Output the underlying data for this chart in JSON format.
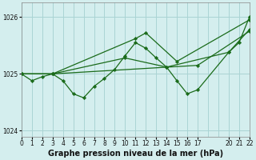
{
  "title": "Graphe pression niveau de la mer (hPa)",
  "bg_color": "#d4eeee",
  "grid_color": "#aad4d4",
  "line_color": "#1a6b1a",
  "series": [
    {
      "x": [
        0,
        1,
        2,
        3,
        4,
        5,
        6,
        7,
        8,
        9,
        10,
        11,
        12,
        13,
        14,
        15,
        16,
        17,
        20,
        21,
        22
      ],
      "y": [
        1025.0,
        1024.88,
        1024.95,
        1025.0,
        1024.88,
        1024.65,
        1024.58,
        1024.78,
        1024.92,
        1025.08,
        1025.32,
        1025.55,
        1025.45,
        1025.28,
        1025.12,
        1024.88,
        1024.65,
        1024.72,
        1025.38,
        1025.55,
        1026.0
      ]
    },
    {
      "x": [
        0,
        3,
        11,
        12,
        15,
        22
      ],
      "y": [
        1025.0,
        1025.0,
        1025.62,
        1025.72,
        1025.22,
        1025.95
      ]
    },
    {
      "x": [
        0,
        3,
        10,
        14,
        20,
        22
      ],
      "y": [
        1025.0,
        1025.0,
        1025.28,
        1025.12,
        1025.38,
        1025.78
      ]
    },
    {
      "x": [
        0,
        3,
        17,
        22
      ],
      "y": [
        1025.0,
        1025.0,
        1025.15,
        1025.75
      ]
    }
  ],
  "xlim": [
    0,
    22
  ],
  "ylim": [
    1023.9,
    1026.25
  ],
  "yticks": [
    1024,
    1025,
    1026
  ],
  "xtick_positions": [
    0,
    1,
    2,
    3,
    4,
    5,
    6,
    7,
    8,
    9,
    10,
    11,
    12,
    13,
    14,
    15,
    16,
    17,
    20,
    21,
    22
  ],
  "xtick_labels": [
    "0",
    "1",
    "2",
    "3",
    "4",
    "5",
    "6",
    "7",
    "8",
    "9",
    "10",
    "11",
    "12",
    "13",
    "14",
    "15",
    "16",
    "17",
    "20",
    "21",
    "22"
  ],
  "grid_x": [
    0,
    1,
    2,
    3,
    4,
    5,
    6,
    7,
    8,
    9,
    10,
    11,
    12,
    13,
    14,
    15,
    16,
    17,
    18,
    19,
    20,
    21,
    22
  ],
  "tick_fontsize": 5.5,
  "label_fontsize": 7.0,
  "marker": "D",
  "markersize": 2.2,
  "linewidth": 0.9
}
